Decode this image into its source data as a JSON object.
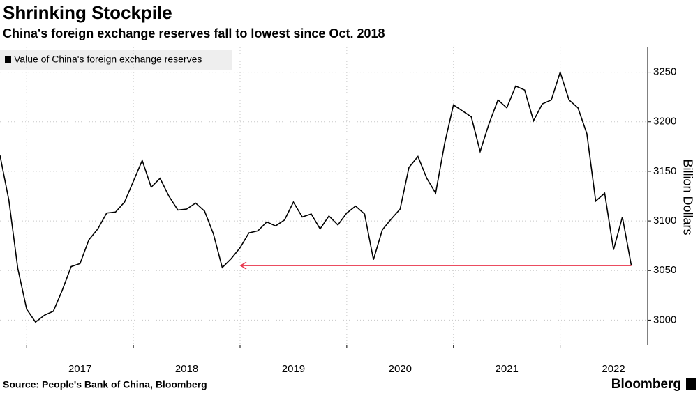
{
  "chart_data": {
    "type": "line",
    "title": "Shrinking Stockpile",
    "subtitle": "China's foreign exchange reserves fall to lowest since Oct. 2018",
    "y_axis_label": "Billion Dollars",
    "source": "Source: People's Bank of China, Bloomberg",
    "brand": "Bloomberg",
    "x": [
      2016.75,
      2016.833,
      2016.917,
      2017,
      2017.083,
      2017.167,
      2017.25,
      2017.333,
      2017.417,
      2017.5,
      2017.583,
      2017.667,
      2017.75,
      2017.833,
      2017.917,
      2018,
      2018.083,
      2018.167,
      2018.25,
      2018.333,
      2018.417,
      2018.5,
      2018.583,
      2018.667,
      2018.75,
      2018.833,
      2018.917,
      2019,
      2019.083,
      2019.167,
      2019.25,
      2019.333,
      2019.417,
      2019.5,
      2019.583,
      2019.667,
      2019.75,
      2019.833,
      2019.917,
      2020,
      2020.083,
      2020.167,
      2020.25,
      2020.333,
      2020.417,
      2020.5,
      2020.583,
      2020.667,
      2020.75,
      2020.833,
      2020.917,
      2021,
      2021.083,
      2021.167,
      2021.25,
      2021.333,
      2021.417,
      2021.5,
      2021.583,
      2021.667,
      2021.75,
      2021.833,
      2021.917,
      2022,
      2022.083,
      2022.167,
      2022.25,
      2022.333,
      2022.417,
      2022.5,
      2022.583,
      2022.667
    ],
    "series": [
      {
        "name": "Value of China's foreign exchange reserves",
        "color": "#000000",
        "values": [
          3166,
          3121,
          3052,
          3011,
          2998,
          3005,
          3009,
          3030,
          3054,
          3057,
          3081,
          3092,
          3108,
          3109,
          3119,
          3140,
          3161,
          3134,
          3143,
          3125,
          3111,
          3112,
          3118,
          3110,
          3087,
          3053,
          3062,
          3073,
          3088,
          3090,
          3099,
          3095,
          3101,
          3119,
          3104,
          3107,
          3092,
          3105,
          3096,
          3108,
          3115,
          3107,
          3061,
          3091,
          3102,
          3112,
          3154,
          3165,
          3143,
          3128,
          3178,
          3217,
          3211,
          3205,
          3170,
          3198,
          3222,
          3214,
          3236,
          3232,
          3201,
          3218,
          3222,
          3250,
          3222,
          3214,
          3188,
          3120,
          3128,
          3071,
          3104,
          3055
        ]
      }
    ],
    "xlim": [
      2016.75,
      2022.82
    ],
    "xticks": [
      {
        "value": 2017,
        "label": "2017"
      },
      {
        "value": 2018,
        "label": "2018"
      },
      {
        "value": 2019,
        "label": "2019"
      },
      {
        "value": 2020,
        "label": "2020"
      },
      {
        "value": 2021,
        "label": "2021"
      },
      {
        "value": 2022,
        "label": "2022"
      }
    ],
    "ylim": [
      2975,
      3275
    ],
    "yticks": [
      3000,
      3050,
      3100,
      3150,
      3200,
      3250
    ],
    "grid": true,
    "annotation_color": "#e8334a"
  }
}
